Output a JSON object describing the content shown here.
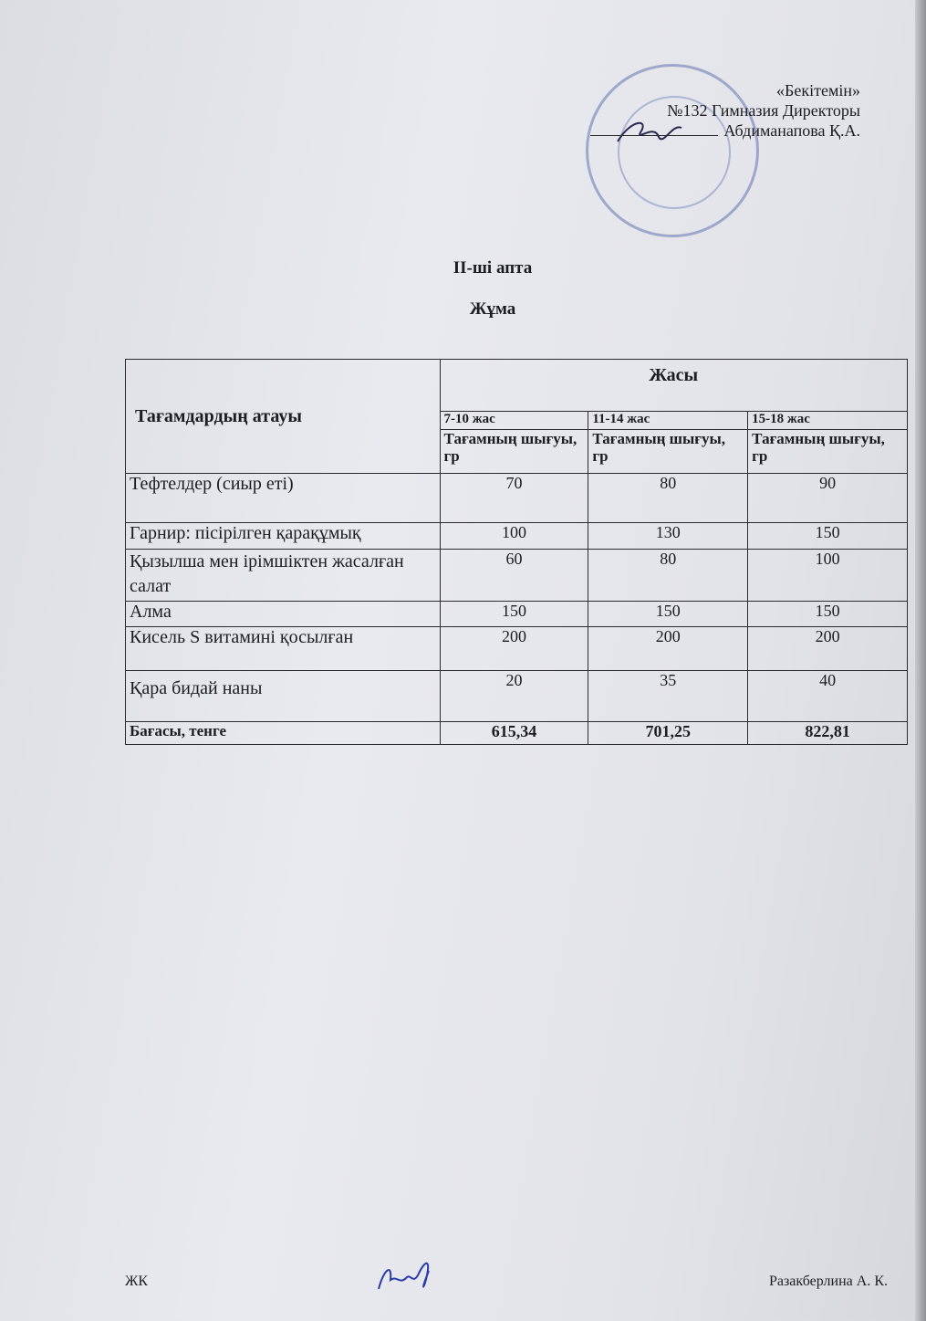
{
  "approval": {
    "line1": "«Бекітемін»",
    "line2": "№132 Гимназия Директоры",
    "line3": "Абдиманапова Қ.А."
  },
  "week": "ІІ-ші апта",
  "day": "Жұма",
  "table": {
    "name_header": "Тағамдардың атауы",
    "age_header": "Жасы",
    "age_groups": [
      "7-10 жас",
      "11-14 жас",
      "15-18 жас"
    ],
    "output_label": "Тағамның шығуы, гр",
    "rows": [
      {
        "name": "Тефтелдер (сиыр еті)",
        "values": [
          "70",
          "80",
          "90"
        ]
      },
      {
        "name": "Гарнир: пісірілген қарақұмық",
        "values": [
          "100",
          "130",
          "150"
        ]
      },
      {
        "name": "Қызылша мен ірімшіктен жасалған салат",
        "values": [
          "60",
          "80",
          "100"
        ]
      },
      {
        "name": "Алма",
        "values": [
          "150",
          "150",
          "150"
        ]
      },
      {
        "name": "Кисель  S витамині қосылған",
        "values": [
          "200",
          "200",
          "200"
        ]
      },
      {
        "name": "Қара бидай наны",
        "values": [
          "20",
          "35",
          "40"
        ]
      }
    ],
    "price_label": "Бағасы, тенге",
    "prices": [
      "615,34",
      "701,25",
      "822,81"
    ]
  },
  "footer": {
    "left": "ЖК",
    "right": "Разакберлина А. К."
  },
  "colors": {
    "paper": "#e6e7ec",
    "ink": "#1c1c22",
    "stamp": "#4a5aa0",
    "signature": "#2a3aa8"
  }
}
